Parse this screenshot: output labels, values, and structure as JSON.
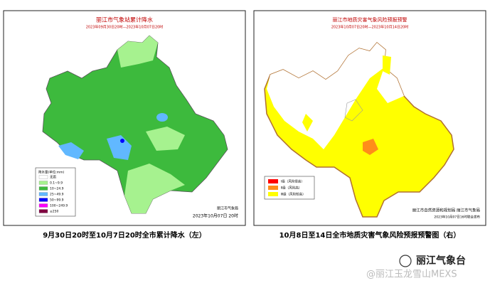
{
  "left_map": {
    "title": "丽江市气象站累计降水",
    "subtitle": "2023年09月30日20时—2023年10月07日20时",
    "legend_title": "降水量(单位:mm)",
    "legend": [
      {
        "label": "无雨",
        "color": "#ffffff"
      },
      {
        "label": "0.1~9.9",
        "color": "#a6f28f"
      },
      {
        "label": "10~24.9",
        "color": "#3dba3d"
      },
      {
        "label": "25~49.9",
        "color": "#61b8ff"
      },
      {
        "label": "50~99.9",
        "color": "#0000ff"
      },
      {
        "label": "100~249.9",
        "color": "#fa00fa"
      },
      {
        "label": "≥250",
        "color": "#800040"
      }
    ],
    "issuer": "丽江市气象局",
    "date": "2023年10月07日 20时",
    "caption": "9月30日20时至10月7日20时全市累计降水（左）"
  },
  "right_map": {
    "title": "丽江市地质灾害气象风险预报预警",
    "subtitle": "2023年10月07日20时—2023年10月14日20时",
    "legend": [
      {
        "label": "Ⅰ级（风险很高）",
        "color": "#ff0000"
      },
      {
        "label": "Ⅱ级（风险高）",
        "color": "#ff8c1a"
      },
      {
        "label": "Ⅲ级（风险较高）",
        "color": "#ffff00"
      }
    ],
    "issuer": "丽江市自然资源和规划局  丽江市气象局",
    "date": "2023年10月07日16时联合发布",
    "caption": "10月8日至14日全市地质灾害气象风险预报预警图（右）"
  },
  "watermark": {
    "account": "丽江气象台",
    "handle": "@丽江玉龙雪山MEXS"
  }
}
